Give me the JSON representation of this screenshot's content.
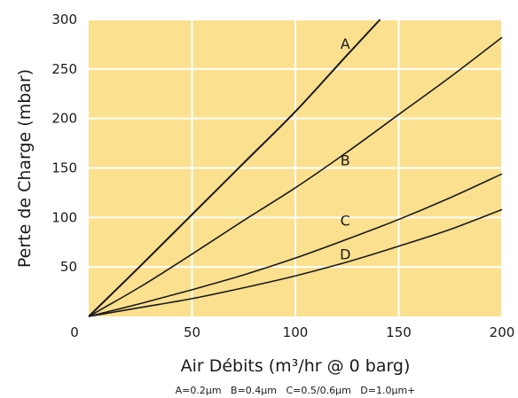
{
  "chart_data": {
    "type": "line",
    "title": "",
    "xlabel": "Air Débits (m³/hr @ 0 barg)",
    "ylabel": "Perte de Charge (mbar)",
    "xlim": [
      0,
      200
    ],
    "ylim": [
      0,
      300
    ],
    "x_ticks": [
      "0",
      "50",
      "100",
      "150",
      "200"
    ],
    "y_ticks": [
      "50",
      "100",
      "150",
      "200",
      "250",
      "300"
    ],
    "grid": true,
    "series": [
      {
        "name": "A",
        "label": "A",
        "label_at": [
          122,
          276
        ],
        "x": [
          0,
          25,
          50,
          75,
          100,
          125,
          141
        ],
        "y": [
          0,
          51,
          103,
          155,
          207,
          264,
          300
        ]
      },
      {
        "name": "B",
        "label": "B",
        "label_at": [
          122,
          158
        ],
        "x": [
          0,
          25,
          50,
          75,
          100,
          125,
          150,
          175,
          200
        ],
        "y": [
          0,
          30,
          63,
          97,
          130,
          166,
          204,
          242,
          282
        ]
      },
      {
        "name": "C",
        "label": "C",
        "label_at": [
          122,
          97
        ],
        "x": [
          0,
          25,
          50,
          75,
          100,
          125,
          150,
          175,
          200
        ],
        "y": [
          0,
          13,
          27,
          42,
          59,
          78,
          98,
          120,
          144
        ]
      },
      {
        "name": "D",
        "label": "D",
        "label_at": [
          122,
          63
        ],
        "x": [
          0,
          25,
          50,
          75,
          100,
          125,
          150,
          175,
          200
        ],
        "y": [
          0,
          9,
          18,
          29,
          41,
          55,
          71,
          88,
          108
        ]
      }
    ],
    "footnote": "A=0.2µm   B=0.4µm   C=0.5/0.6µm   D=1.0µm+"
  },
  "colors": {
    "plot_background": "#fbe08f",
    "grid": "#ffffff",
    "line": "#1a1a1a"
  }
}
